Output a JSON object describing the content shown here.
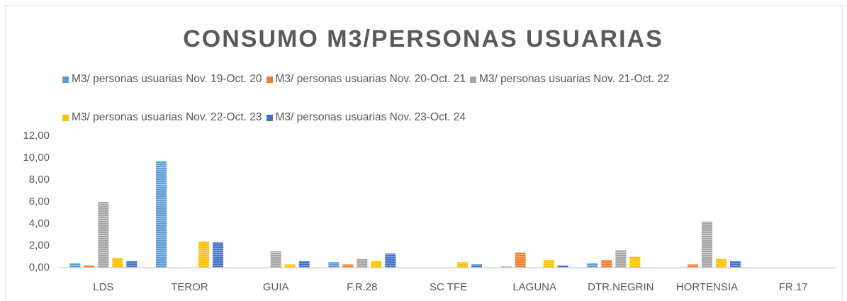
{
  "chart_data": {
    "type": "bar",
    "title": "CONSUMO M3/PERSONAS USUARIAS",
    "categories": [
      "LDS",
      "TEROR",
      "GUIA",
      "F.R.28",
      "SC TFE",
      "LAGUNA",
      "DTR.NEGRIN",
      "HORTENSIA",
      "FR.17"
    ],
    "series": [
      {
        "name": "M3/ personas usuarias Nov. 19-Oct. 20",
        "color": "#5b9bd5",
        "values": [
          0.4,
          9.7,
          0,
          0.5,
          0,
          0.1,
          0.4,
          0,
          0
        ]
      },
      {
        "name": "M3/ personas usuarias Nov. 20-Oct. 21",
        "color": "#ed7d31",
        "values": [
          0.2,
          0,
          0,
          0.3,
          0,
          1.4,
          0.7,
          0.3,
          0
        ]
      },
      {
        "name": "M3/ personas usuarias Nov. 21-Oct. 22",
        "color": "#a5a5a5",
        "values": [
          6.0,
          0,
          1.5,
          0.8,
          0,
          0,
          1.6,
          4.2,
          0
        ]
      },
      {
        "name": "M3/ personas usuarias Nov. 22-Oct. 23",
        "color": "#ffc000",
        "values": [
          0.9,
          2.4,
          0.3,
          0.6,
          0.5,
          0.7,
          1.0,
          0.8,
          0
        ]
      },
      {
        "name": "M3/ personas usuarias Nov. 23-Oct. 24",
        "color": "#4472c4",
        "values": [
          0.6,
          2.3,
          0.6,
          1.3,
          0.3,
          0.2,
          0,
          0.6,
          0
        ]
      }
    ],
    "ylim": [
      0,
      12
    ],
    "yticks": [
      {
        "value": 0,
        "label": "0,00"
      },
      {
        "value": 2,
        "label": "2,00"
      },
      {
        "value": 4,
        "label": "4,00"
      },
      {
        "value": 6,
        "label": "6,00"
      },
      {
        "value": 8,
        "label": "8,00"
      },
      {
        "value": 10,
        "label": "10,00"
      },
      {
        "value": 12,
        "label": "12,00"
      }
    ],
    "grid": false
  }
}
